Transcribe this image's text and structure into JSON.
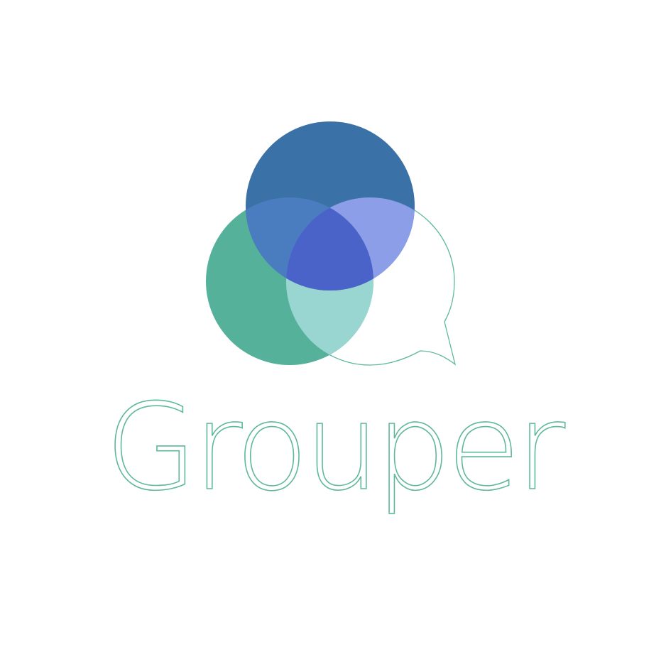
{
  "brand": {
    "name": "Grouper",
    "colors": {
      "blue": "#3a72a8",
      "teal": "#56b19b",
      "light_teal": "#9ad6d1",
      "lavender": "#8c9ee8",
      "deep_overlap": "#4a63c8",
      "mid_overlap": "#4a7cc0",
      "outline": "#5fb89c"
    },
    "icon": "speech-bubble-venn-logo-icon"
  }
}
